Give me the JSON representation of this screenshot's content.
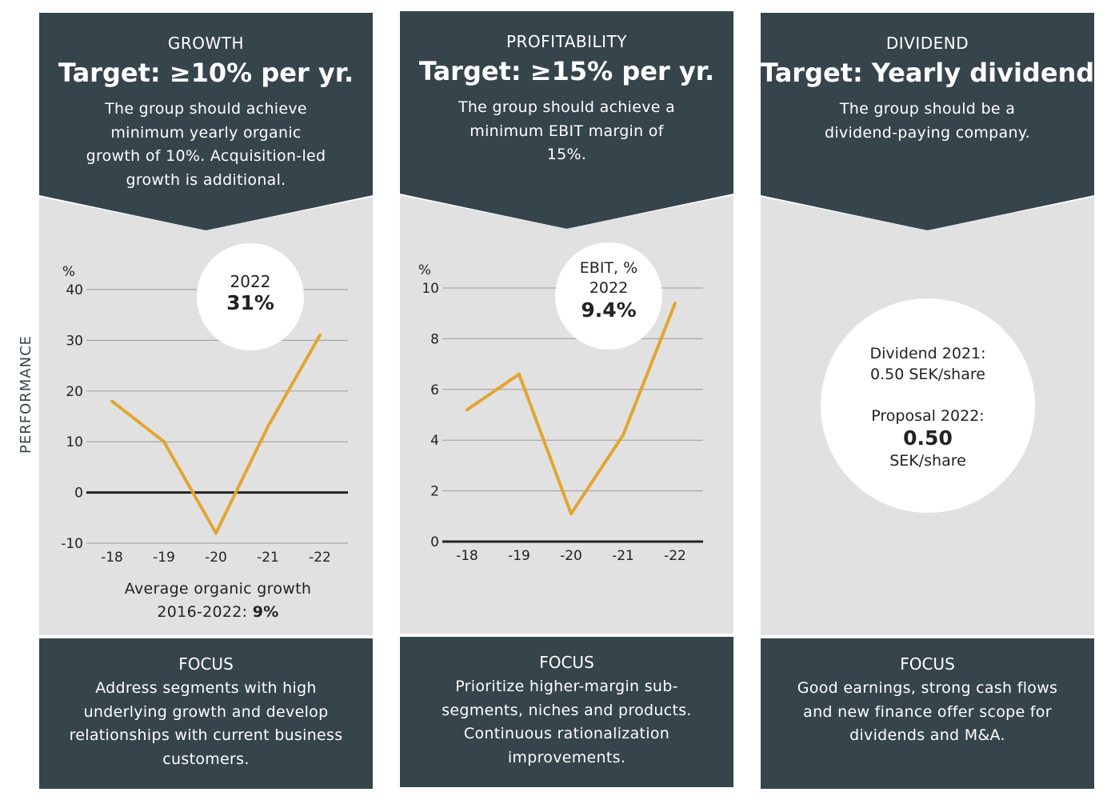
{
  "side_label": "PERFORMANCE",
  "columns": [
    {
      "category": "GROWTH",
      "target": "Target: ≥10% per yr.",
      "description": "The group should achieve minimum yearly organic growth of 10%. Acquisition-led growth is additional.",
      "focus_title": "FOCUS",
      "focus_text": "Address segments with high underlying growth and develop relationships with current business customers.",
      "highlight_label": "2022",
      "highlight_value": "31%",
      "note_prefix": "Average organic growth 2016-2022: ",
      "note_value": "9%"
    },
    {
      "category": "PROFITABILITY",
      "target": "Target: ≥15% per yr.",
      "description": "The group should achieve a minimum EBIT margin of 15%.",
      "focus_title": "FOCUS",
      "focus_text": "Prioritize higher-margin sub-segments, niches and products. Continuous rationalization improvements.",
      "highlight_label1": "EBIT, %",
      "highlight_label": "2022",
      "highlight_value": "9.4%"
    },
    {
      "category": "DIVIDEND",
      "target": "Target: Yearly dividend",
      "description": "The group should be a dividend-paying company.",
      "focus_title": "FOCUS",
      "focus_text": "Good earnings, strong cash flows and new finance offer scope for dividends and M&A.",
      "dividend_line1": "Dividend 2021:",
      "dividend_line2": "0.50 SEK/share",
      "proposal_label": "Proposal 2022:",
      "proposal_value": "0.50",
      "proposal_unit": "SEK/share"
    }
  ],
  "colors": {
    "dark": "#36444c",
    "panel": "#e1e1e1",
    "line": "#e2a532"
  },
  "chart_data": [
    {
      "type": "line",
      "ylabel": "%",
      "categories": [
        "-18",
        "-19",
        "-20",
        "-21",
        "-22"
      ],
      "values": [
        18,
        10,
        -8,
        13,
        31
      ],
      "ylim": [
        -10,
        40
      ],
      "yticks": [
        -10,
        0,
        10,
        20,
        30,
        40
      ],
      "grid": true
    },
    {
      "type": "line",
      "ylabel": "%",
      "categories": [
        "-18",
        "-19",
        "-20",
        "-21",
        "-22"
      ],
      "values": [
        5.2,
        6.6,
        1.1,
        4.2,
        9.4
      ],
      "ylim": [
        0,
        10
      ],
      "yticks": [
        0,
        2,
        4,
        6,
        8,
        10
      ],
      "grid": true
    }
  ]
}
